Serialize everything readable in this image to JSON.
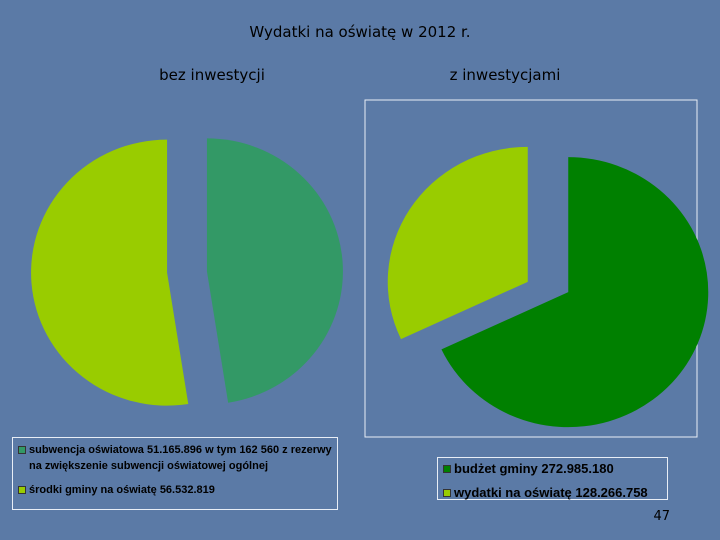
{
  "title": "Wydatki na oświatę w 2012 r.",
  "chart_data": [
    {
      "type": "pie",
      "title": "bez inwestycji",
      "categories": [
        "subwencja oświatowa 51.165.896 w tym 162 560 z rezerwy na zwiększenie subwencji oświatowej ogólnej",
        "środki gminy na oświatę 56.532.819"
      ],
      "values": [
        51165896,
        56532819
      ],
      "colors": [
        "#339966",
        "#99cc00"
      ]
    },
    {
      "type": "pie",
      "title": "z inwestycjami",
      "categories": [
        "budżet gminy 272.985.180",
        "wydatki na oświatę 128.266.758"
      ],
      "values": [
        272985180,
        128266758
      ],
      "colors": [
        "#008000",
        "#99cc00"
      ]
    }
  ],
  "page_number": "47"
}
